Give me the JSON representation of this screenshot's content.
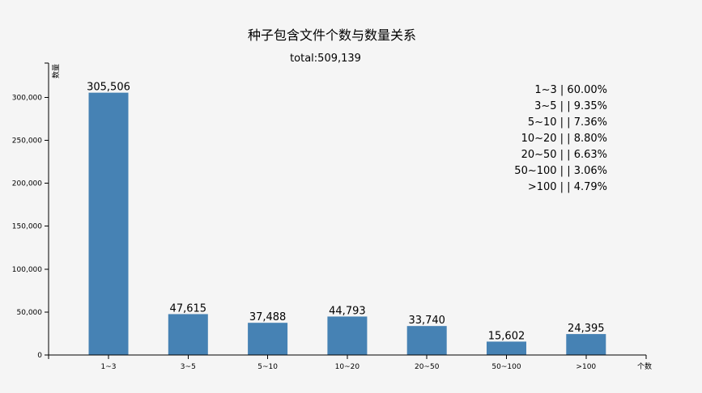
{
  "chart_data": {
    "type": "bar",
    "title": "种子包含文件个数与数量关系",
    "subtitle": "total:509,139",
    "xlabel": "个数",
    "ylabel": "数量",
    "categories": [
      "1~3",
      "3~5",
      "5~10",
      "10~20",
      "20~50",
      "50~100",
      ">100"
    ],
    "values": [
      305506,
      47615,
      37488,
      44793,
      33740,
      15602,
      24395
    ],
    "value_labels": [
      "305,506",
      "47,615",
      "37,488",
      "44,793",
      "33,740",
      "15,602",
      "24,395"
    ],
    "ylim": [
      0,
      340000
    ],
    "yticks": [
      0,
      50000,
      100000,
      150000,
      200000,
      250000,
      300000
    ],
    "ytick_labels": [
      "0",
      "50,000",
      "100,000",
      "150,000",
      "200,000",
      "250,000",
      "300,000"
    ],
    "legend_position": "top-right",
    "legend": [
      "1~3 | 60.00%",
      "3~5 | | 9.35%",
      "5~10 | | 7.36%",
      "10~20 | | 8.80%",
      "20~50 | | 6.63%",
      "50~100 | | 3.06%",
      ">100 | | 4.79%"
    ],
    "bar_color": "#4682b4",
    "grid": false
  }
}
